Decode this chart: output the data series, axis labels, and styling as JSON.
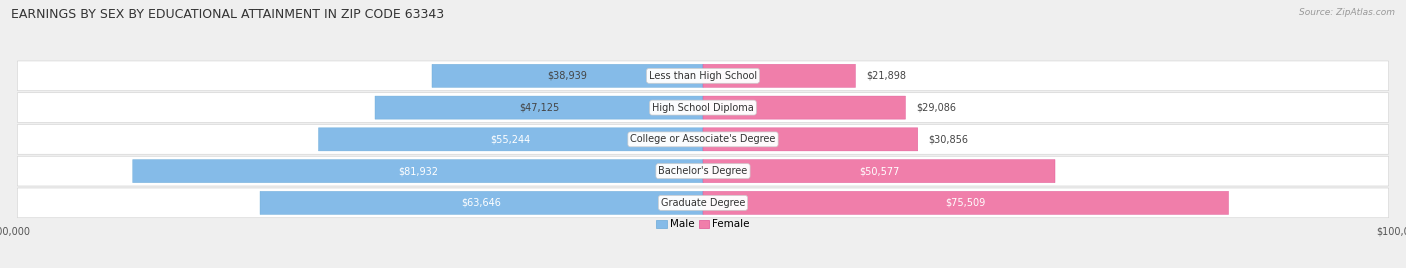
{
  "title": "EARNINGS BY SEX BY EDUCATIONAL ATTAINMENT IN ZIP CODE 63343",
  "source": "Source: ZipAtlas.com",
  "categories": [
    "Less than High School",
    "High School Diploma",
    "College or Associate's Degree",
    "Bachelor's Degree",
    "Graduate Degree"
  ],
  "male_values": [
    38939,
    47125,
    55244,
    81932,
    63646
  ],
  "female_values": [
    21898,
    29086,
    30856,
    50577,
    75509
  ],
  "male_color": "#85BBE8",
  "female_color": "#F07EAA",
  "male_color_edge": "#6AAAD8",
  "female_color_edge": "#E05595",
  "max_value": 100000,
  "bg_color": "#EFEFEF",
  "title_fontsize": 9,
  "label_fontsize": 7,
  "tick_fontsize": 7,
  "legend_fontsize": 7.5,
  "source_fontsize": 6.5
}
